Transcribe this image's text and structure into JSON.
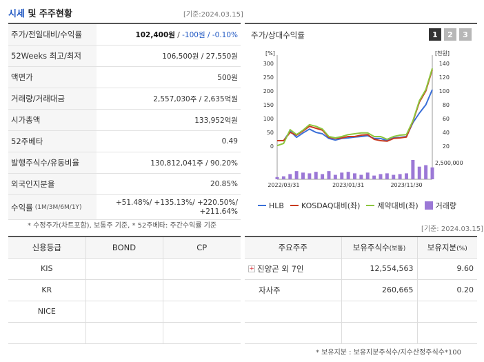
{
  "header": {
    "title_accent": "시세",
    "title_rest": " 및 주주현황",
    "date": "[기준:2024.03.15]"
  },
  "price": {
    "rows": [
      {
        "label": "주가/전일대비/수익률",
        "value_main": "102,400원",
        "value_sep": " / ",
        "value_change": "-100원 / -0.10%"
      },
      {
        "label": "52Weeks 최고/최저",
        "value": "106,500원 / 27,550원"
      },
      {
        "label": "액면가",
        "value": "500원"
      },
      {
        "label": "거래량/거래대금",
        "value": "2,557,030주 / 2,635억원"
      },
      {
        "label": "시가총액",
        "value": "133,952억원"
      },
      {
        "label": "52주베타",
        "value": "0.49"
      },
      {
        "label": "발행주식수/유동비율",
        "value": "130,812,041주 / 90.20%"
      },
      {
        "label": "외국인지분율",
        "value": "20.85%"
      }
    ],
    "return_label": "수익률",
    "return_sub": "(1M/3M/6M/1Y)",
    "return_line1": "+51.48%/ +135.13%/ +220.50%/",
    "return_line2": "+211.64%",
    "note": "* 수정주가(차트포함), 보통주 기준, * 52주베타: 주간수익률 기준"
  },
  "chart_panel": {
    "title": "주가/상대수익률",
    "tabs": [
      "1",
      "2",
      "3"
    ],
    "date": "[기준: 2024.03.15]"
  },
  "chart_data": {
    "type": "line",
    "left_axis_unit": "[%]",
    "right_axis_unit": "[천원]",
    "yleft_ticks": [
      "300",
      "250",
      "200",
      "150",
      "100",
      "50",
      "0"
    ],
    "yright_ticks": [
      "140",
      "120",
      "100",
      "80",
      "60",
      "40",
      "20"
    ],
    "volume_tick": "2,500,000",
    "x_ticks": [
      "2022/03/31",
      "2023/01/31",
      "2023/11/30"
    ],
    "ylim_left": [
      0,
      300
    ],
    "x": [
      0,
      1,
      2,
      3,
      4,
      5,
      6,
      7,
      8,
      9,
      10,
      11,
      12,
      13,
      14,
      15,
      16,
      17,
      18,
      19,
      20,
      21,
      22,
      23,
      24
    ],
    "series": [
      {
        "name": "HLB",
        "color": "#3a6fd8",
        "axis": "left",
        "values": [
          20,
          20,
          55,
          32,
          48,
          62,
          50,
          45,
          28,
          22,
          28,
          30,
          33,
          35,
          38,
          28,
          28,
          20,
          30,
          32,
          35,
          85,
          120,
          150,
          205
        ]
      },
      {
        "name": "KOSDAQ대비(좌)",
        "color": "#c93a1e",
        "axis": "left",
        "values": [
          20,
          20,
          50,
          40,
          55,
          72,
          65,
          58,
          32,
          28,
          30,
          35,
          35,
          40,
          42,
          25,
          20,
          18,
          28,
          30,
          33,
          90,
          160,
          200,
          278
        ]
      },
      {
        "name": "제약대비(좌)",
        "color": "#8cc63e",
        "axis": "left",
        "values": [
          2,
          10,
          60,
          42,
          58,
          78,
          72,
          62,
          35,
          30,
          35,
          42,
          45,
          48,
          48,
          35,
          35,
          25,
          35,
          40,
          42,
          92,
          165,
          205,
          282
        ]
      }
    ],
    "volume": {
      "name": "거래량",
      "color": "#9b78d6",
      "values": [
        0.15,
        0.2,
        0.35,
        0.55,
        0.45,
        0.4,
        0.5,
        0.35,
        0.55,
        0.3,
        0.45,
        0.5,
        0.4,
        0.3,
        0.45,
        0.25,
        0.35,
        0.4,
        0.3,
        0.35,
        0.4,
        1.3,
        0.85,
        0.95,
        0.8
      ]
    }
  },
  "ratings": {
    "headers": [
      "신용등급",
      "BOND",
      "CP"
    ],
    "rows": [
      [
        "KIS",
        "",
        ""
      ],
      [
        "KR",
        "",
        ""
      ],
      [
        "NICE",
        "",
        ""
      ],
      [
        "",
        "",
        ""
      ]
    ]
  },
  "holders": {
    "head_name": "주요주주",
    "head_shares": "보유주식수",
    "head_shares_unit": "(보통)",
    "head_ratio": "보유지분",
    "head_ratio_unit": "(%)",
    "rows": [
      {
        "name": "진양곤 외 7인",
        "expand": "+",
        "shares": "12,554,563",
        "ratio": "9.60"
      },
      {
        "name": "자사주",
        "expand": "",
        "shares": "260,665",
        "ratio": "0.20"
      },
      {
        "name": "",
        "expand": "",
        "shares": "",
        "ratio": ""
      },
      {
        "name": "",
        "expand": "",
        "shares": "",
        "ratio": ""
      }
    ],
    "note": "* 보유지분 : 보유지분주식수/지수산정주식수*100"
  }
}
